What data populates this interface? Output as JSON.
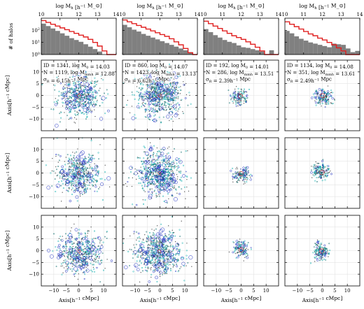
{
  "chart_data": {
    "type": "figure-grid",
    "columns": 4,
    "histogram_panels": {
      "xlabel": "log M_h [h^-1 M_⊙]",
      "ylabel": "# of halos",
      "xlim": [
        10,
        14
      ],
      "xticks": [
        "10",
        "11",
        "12",
        "13",
        "14"
      ],
      "ylim_exponent": [
        0,
        3
      ],
      "yticks": [
        "10^0",
        "10^1",
        "10^2"
      ],
      "bar_color": "#808080",
      "line_color": "#e02020",
      "bin_edges": [
        10.0,
        10.25,
        10.5,
        10.75,
        11.0,
        11.25,
        11.5,
        11.75,
        12.0,
        12.25,
        12.5,
        12.75,
        13.0,
        13.25,
        13.5,
        13.75,
        14.0
      ],
      "panels": [
        {
          "bars_log10": [
            2.55,
            2.35,
            2.15,
            1.95,
            1.75,
            1.55,
            1.35,
            1.2,
            1.05,
            0.85,
            0.65,
            0.45,
            0.25,
            0,
            0,
            0
          ],
          "line_log10": [
            2.8,
            2.65,
            2.5,
            2.35,
            2.2,
            2.05,
            1.9,
            1.75,
            1.6,
            1.45,
            1.25,
            1.0,
            0.7,
            0.3,
            -0.5,
            -1
          ]
        },
        {
          "bars_log10": [
            2.45,
            2.25,
            2.05,
            1.9,
            1.7,
            1.55,
            1.4,
            1.25,
            1.1,
            0.95,
            0.8,
            0.65,
            0.5,
            0.35,
            0.2,
            0
          ],
          "line_log10": [
            2.85,
            2.7,
            2.55,
            2.4,
            2.25,
            2.1,
            1.95,
            1.8,
            1.65,
            1.5,
            1.3,
            1.05,
            0.8,
            0.5,
            0.15,
            -0.5
          ]
        },
        {
          "bars_log10": [
            2.1,
            1.85,
            1.6,
            1.4,
            1.2,
            1.05,
            0.95,
            0.75,
            0.6,
            0.55,
            0.45,
            0.35,
            0.25,
            0,
            0.35,
            0
          ],
          "line_log10": [
            2.75,
            2.55,
            2.35,
            2.15,
            1.95,
            1.75,
            1.55,
            1.4,
            1.25,
            1.05,
            0.85,
            0.6,
            0.3,
            -0.2,
            -1,
            -1
          ]
        },
        {
          "bars_log10": [
            1.95,
            1.75,
            1.5,
            1.3,
            1.15,
            1.0,
            0.9,
            0.8,
            0.7,
            0.6,
            0.9,
            0.85,
            0.8,
            0.5,
            0.2,
            0.3
          ],
          "line_log10": [
            2.7,
            2.5,
            2.3,
            2.1,
            1.9,
            1.7,
            1.55,
            1.35,
            1.2,
            1.0,
            0.8,
            0.55,
            0.3,
            -0.1,
            -1,
            -1
          ]
        }
      ]
    },
    "scatter_panels": {
      "xlabel": "Axis[h^-1 cMpc]",
      "ylabel": "Axis[h^-1 cMpc]",
      "xlim": [
        -15,
        15
      ],
      "ylim": [
        -15,
        15
      ],
      "xticks": [
        "−10",
        "−5",
        "0",
        "5",
        "10"
      ],
      "yticks": [
        "−10",
        "−5",
        "0",
        "5",
        "10"
      ],
      "colors": {
        "ring": "#1a2cc0",
        "cyan": "#19b3b3",
        "teal": "#0c6e6e",
        "dot": "#444444",
        "hub": "#d03030"
      },
      "spread_sigma": [
        6.15,
        6.62,
        2.39,
        2.49
      ],
      "point_counts": [
        1119,
        1423,
        286,
        351
      ],
      "info": [
        {
          "line1": "ID = 1341, log M_0 = 14.03",
          "line2": "N = 1119, log M_mmh = 12.88",
          "line3": "σ_R = 6.15h^-1 Mpc"
        },
        {
          "line1": "ID = 860, log M_0 = 14.07",
          "line2": "N = 1423, log M_mmh = 13.13",
          "line3": "σ_R = 6.62h^-1 Mpc"
        },
        {
          "line1": "ID = 192, log M_0 = 14.01",
          "line2": "N = 286, log M_mmh = 13.51",
          "line3": "σ_R = 2.39h^-1 Mpc"
        },
        {
          "line1": "ID = 1134, log M_0 = 14.08",
          "line2": "N = 351, log M_mmh = 13.61",
          "line3": "σ_R = 2.49h^-1 Mpc"
        }
      ]
    }
  }
}
